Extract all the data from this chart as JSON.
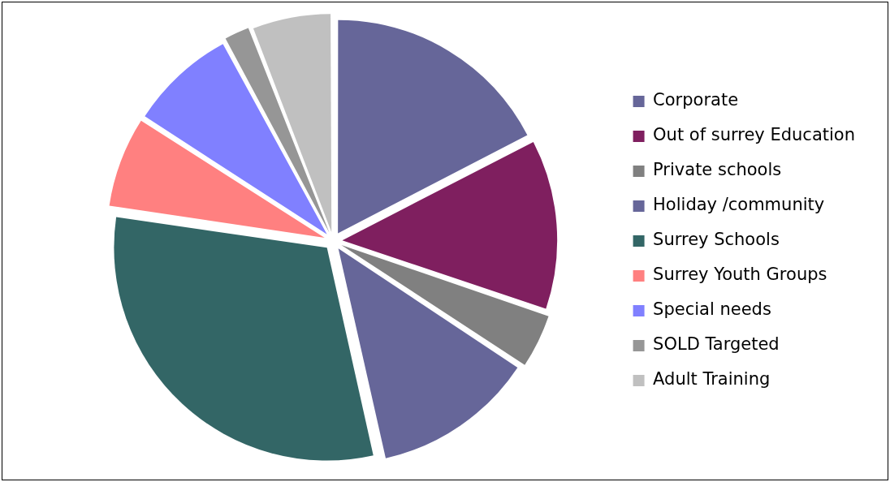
{
  "chart_data": {
    "type": "pie",
    "categories": [
      "Corporate",
      "Out of surrey Education",
      "Private schools",
      "Holiday /community",
      "Surrey Schools",
      "Surrey Youth Groups",
      "Special needs",
      "SOLD Targeted",
      "Adult Training"
    ],
    "values": [
      17.4,
      12.8,
      4.1,
      12.2,
      30.8,
      6.8,
      8,
      2,
      5.9
    ],
    "colors": [
      "#666699",
      "#7f1f5f",
      "#808080",
      "#666699",
      "#336666",
      "#ff8080",
      "#8080ff",
      "#969696",
      "#c0c0c0"
    ],
    "legend": "right"
  }
}
